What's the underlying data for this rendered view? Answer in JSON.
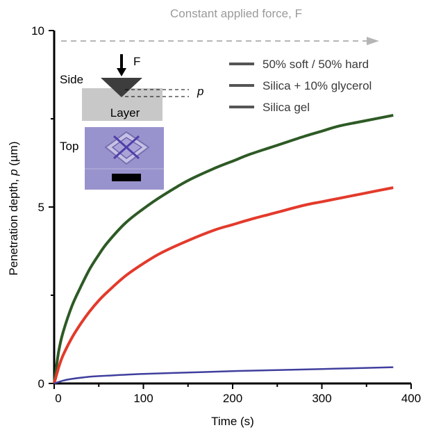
{
  "chart_data": {
    "type": "line",
    "title": "",
    "annotation": "Constant applied force, F",
    "xlabel": "Time (s)",
    "ylabel": "Penetration depth, p (µm)",
    "xlim": [
      0,
      400
    ],
    "ylim": [
      0,
      10
    ],
    "x_ticks": [
      "0",
      "100",
      "200",
      "300",
      "400"
    ],
    "y_ticks": [
      "0",
      "5",
      "10"
    ],
    "legend_position": "top-right",
    "grid": false,
    "series": [
      {
        "name": "50% soft / 50% hard",
        "color": "#2e5a25",
        "x": [
          0,
          5,
          10,
          20,
          30,
          40,
          50,
          60,
          80,
          100,
          120,
          150,
          180,
          200,
          220,
          250,
          280,
          300,
          320,
          350,
          380
        ],
        "y": [
          0,
          0.9,
          1.45,
          2.2,
          2.75,
          3.25,
          3.65,
          4.0,
          4.55,
          4.95,
          5.3,
          5.75,
          6.1,
          6.3,
          6.5,
          6.75,
          7.0,
          7.15,
          7.3,
          7.45,
          7.6
        ]
      },
      {
        "name": "Silica + 10% glycerol",
        "color": "#e33a2b",
        "x": [
          0,
          5,
          10,
          20,
          30,
          40,
          50,
          60,
          80,
          100,
          120,
          150,
          180,
          200,
          220,
          250,
          280,
          300,
          320,
          350,
          380
        ],
        "y": [
          0,
          0.45,
          0.8,
          1.3,
          1.7,
          2.05,
          2.35,
          2.6,
          3.05,
          3.4,
          3.7,
          4.05,
          4.35,
          4.5,
          4.65,
          4.85,
          5.05,
          5.15,
          5.25,
          5.4,
          5.55
        ]
      },
      {
        "name": "Silica gel",
        "color": "#3f3f9e",
        "x": [
          0,
          10,
          20,
          40,
          60,
          100,
          150,
          200,
          250,
          300,
          350,
          380
        ],
        "y": [
          0,
          0.08,
          0.13,
          0.19,
          0.22,
          0.27,
          0.31,
          0.35,
          0.38,
          0.41,
          0.44,
          0.46
        ]
      }
    ],
    "inset": {
      "force_label": "F",
      "side_label": "Side",
      "layer_label": "Layer",
      "depth_label": "p",
      "top_label": "Top"
    }
  }
}
